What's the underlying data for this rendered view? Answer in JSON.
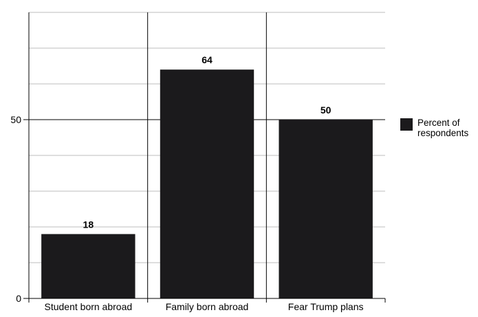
{
  "chart_data": {
    "type": "bar",
    "categories": [
      "Student born abroad",
      "Family born abroad",
      "Fear Trump plans"
    ],
    "series": [
      {
        "name": "Percent of respondents",
        "values": [
          18,
          64,
          50
        ]
      }
    ],
    "data_labels": [
      "18",
      "64",
      "50"
    ],
    "yticks": [
      0,
      50
    ],
    "ytick_labels": [
      "0",
      "50"
    ],
    "ylim": [
      0,
      80
    ],
    "grid_step": 10,
    "grid": true,
    "legend": "right",
    "bar_color": "#1b1a1c"
  }
}
